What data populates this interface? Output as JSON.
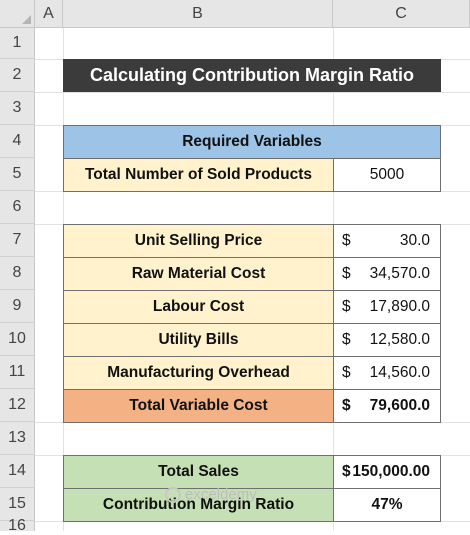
{
  "columns": [
    "A",
    "B",
    "C"
  ],
  "rows": [
    "1",
    "2",
    "3",
    "4",
    "5",
    "6",
    "7",
    "8",
    "9",
    "10",
    "11",
    "12",
    "13",
    "14",
    "15",
    "16"
  ],
  "title": "Calculating Contribution Margin Ratio",
  "required": {
    "header": "Required Variables",
    "label": "Total Number of Sold Products",
    "value": "5000"
  },
  "costs": [
    {
      "label": "Unit Selling Price",
      "currency": "$",
      "value": "30.0"
    },
    {
      "label": "Raw Material Cost",
      "currency": "$",
      "value": "34,570.0"
    },
    {
      "label": "Labour Cost",
      "currency": "$",
      "value": "17,890.0"
    },
    {
      "label": "Utility Bills",
      "currency": "$",
      "value": "12,580.0"
    },
    {
      "label": "Manufacturing Overhead",
      "currency": "$",
      "value": "14,560.0"
    }
  ],
  "total_variable": {
    "label": "Total Variable Cost",
    "currency": "$",
    "value": "79,600.0"
  },
  "total_sales": {
    "label": "Total Sales",
    "currency": "$",
    "value": "150,000.00"
  },
  "cm_ratio": {
    "label": "Contribution Margin Ratio",
    "value": "47%"
  },
  "watermark": "exceldemy",
  "colors": {
    "title_bg": "#3b3b3b",
    "header_blue": "#9dc3e6",
    "light_peach": "#fff2cc",
    "orange": "#f4b183",
    "green": "#c5e0b4"
  }
}
